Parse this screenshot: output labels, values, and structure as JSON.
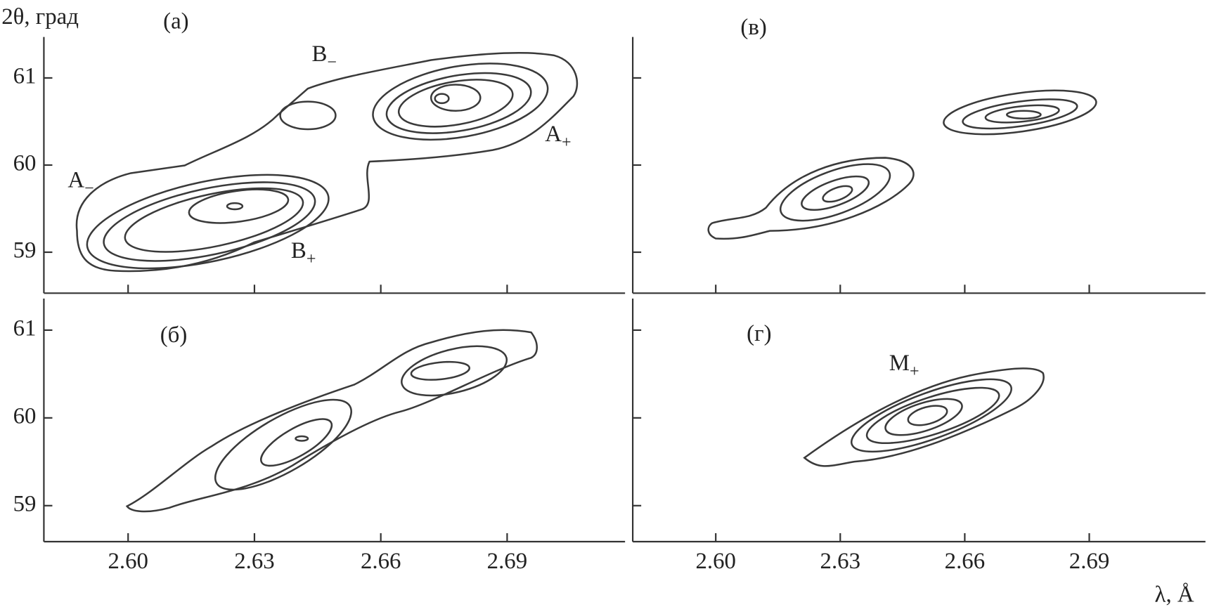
{
  "chart_data": [
    {
      "type": "contour",
      "label": "(а)",
      "ylabel": "2θ, град",
      "xlim": [
        2.58,
        2.718
      ],
      "ylim": [
        58.53,
        61.47
      ],
      "yticks": [
        59,
        60,
        61
      ],
      "annotations": [
        {
          "text": "B",
          "sub": "−"
        },
        {
          "text": "A",
          "sub": "+"
        },
        {
          "text": "A",
          "sub": "−"
        },
        {
          "text": "B",
          "sub": "+"
        }
      ]
    },
    {
      "type": "contour",
      "label": "(б)",
      "xlim": [
        2.58,
        2.718
      ],
      "ylim": [
        58.59,
        61.36
      ],
      "yticks": [
        59,
        60,
        61
      ],
      "xticks": [
        {
          "value": 2.6,
          "label": "2.60"
        },
        2.63,
        2.66,
        2.69
      ]
    },
    {
      "type": "contour",
      "label": "(в)",
      "xlim": [
        2.58,
        2.718
      ],
      "ylim": [
        58.53,
        61.47
      ]
    },
    {
      "type": "contour",
      "label": "(г)",
      "xlabel": "λ, Å",
      "xlim": [
        2.58,
        2.718
      ],
      "ylim": [
        58.59,
        61.36
      ],
      "xticks": [
        {
          "value": 2.6,
          "label": "2.60"
        },
        2.63,
        2.66,
        2.69
      ],
      "annotations": [
        {
          "text": "M",
          "sub": "+"
        }
      ]
    }
  ]
}
